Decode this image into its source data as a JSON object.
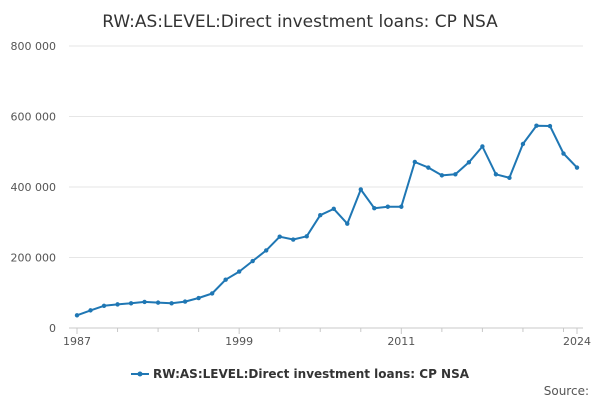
{
  "chart_data": {
    "type": "line",
    "title": "RW:AS:LEVEL:Direct investment loans: CP NSA",
    "xlabel": "",
    "ylabel": "",
    "x": [
      1987,
      1988,
      1989,
      1990,
      1991,
      1992,
      1993,
      1994,
      1995,
      1996,
      1997,
      1998,
      1999,
      2000,
      2001,
      2002,
      2003,
      2004,
      2005,
      2006,
      2007,
      2008,
      2009,
      2010,
      2011,
      2012,
      2013,
      2014,
      2015,
      2016,
      2017,
      2018,
      2019,
      2020,
      2021,
      2022,
      2023,
      2024
    ],
    "series": [
      {
        "name": "RW:AS:LEVEL:Direct investment loans: CP NSA",
        "color": "#1f77b4",
        "values": [
          36000,
          50000,
          63000,
          67000,
          70000,
          74000,
          72000,
          70000,
          75000,
          85000,
          98000,
          137000,
          160000,
          190000,
          220000,
          259000,
          251000,
          260000,
          320000,
          338000,
          296000,
          393000,
          340000,
          344000,
          344000,
          471000,
          455000,
          433000,
          436000,
          470000,
          515000,
          436000,
          426000,
          522000,
          574000,
          573000,
          495000,
          455000
        ]
      }
    ],
    "xlim": [
      1987,
      2024
    ],
    "ylim": [
      0,
      800000
    ],
    "yticks": [
      0,
      200000,
      400000,
      600000,
      800000
    ],
    "ytick_labels": [
      "0",
      "200 000",
      "400 000",
      "600 000",
      "800 000"
    ],
    "xticks": [
      1987,
      1999,
      2011,
      2024
    ],
    "xtick_labels": [
      "1987",
      "1999",
      "2011",
      "2024"
    ],
    "grid": true,
    "legend_position": "bottom-center"
  },
  "source_label": "Source:"
}
